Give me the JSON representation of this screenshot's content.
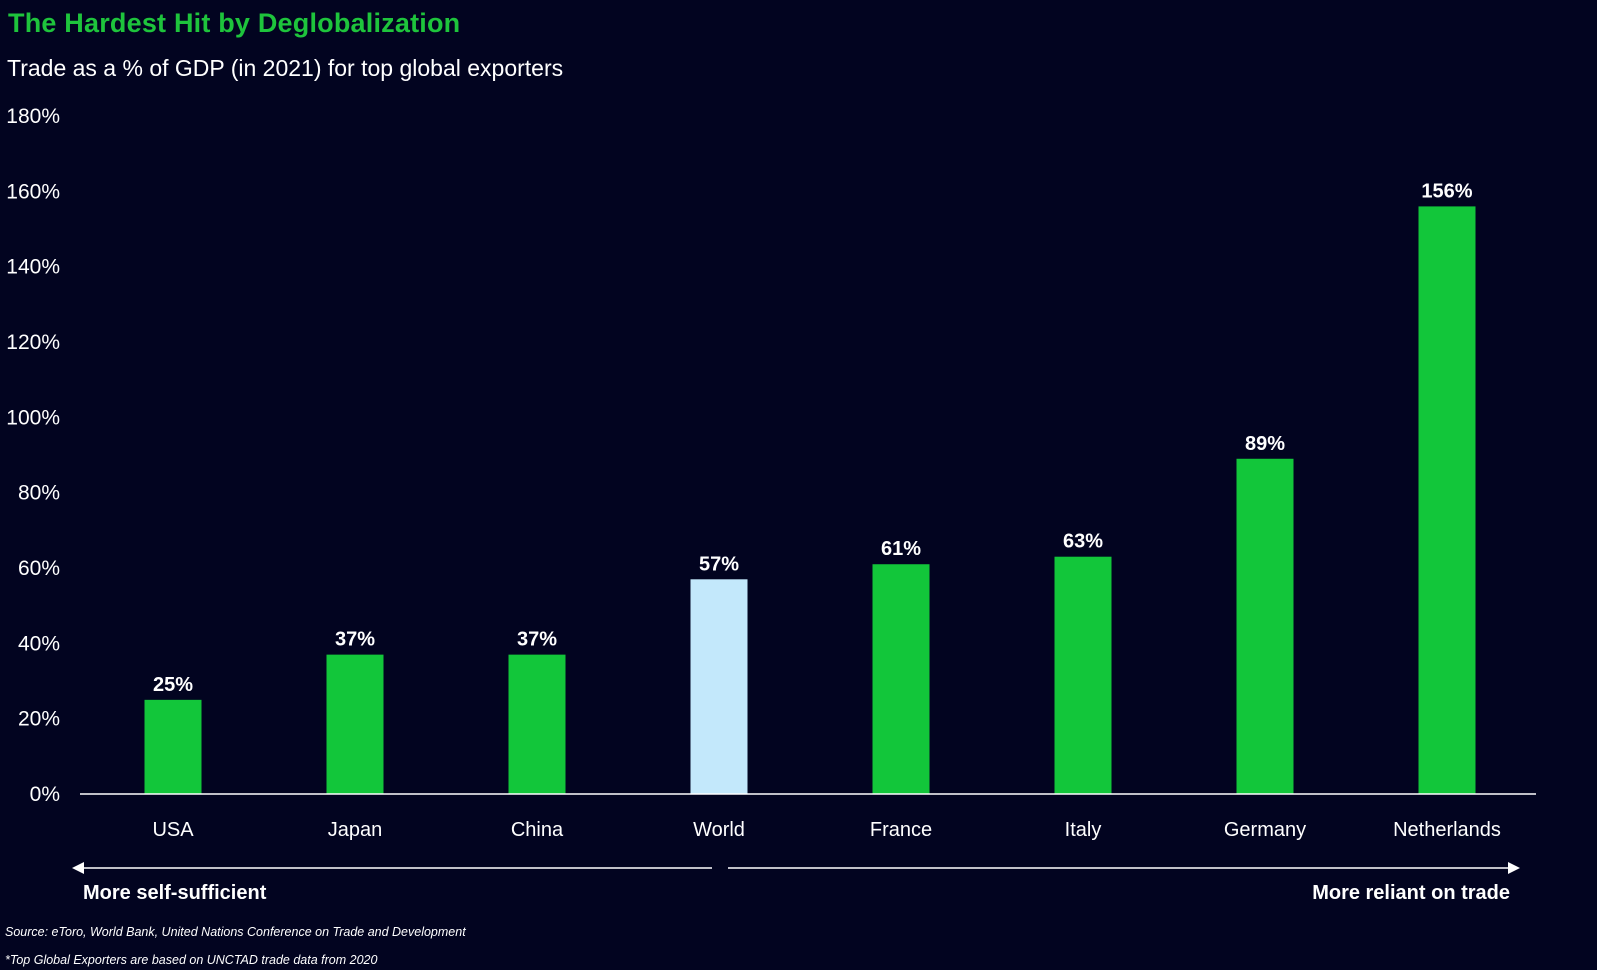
{
  "title": "The Hardest Hit by Deglobalization",
  "subtitle": "Trade as a % of GDP (in 2021) for top global exporters",
  "colors": {
    "background": "#020420",
    "bar": "#12c63a",
    "highlight": "#c3e8fb",
    "title": "#1ec43c",
    "text": "#ffffff"
  },
  "chart_data": {
    "type": "bar",
    "categories": [
      "USA",
      "Japan",
      "China",
      "World",
      "France",
      "Italy",
      "Germany",
      "Netherlands"
    ],
    "values": [
      25,
      37,
      37,
      57,
      61,
      63,
      89,
      156
    ],
    "data_labels": [
      "25%",
      "37%",
      "37%",
      "57%",
      "61%",
      "63%",
      "89%",
      "156%"
    ],
    "highlight_category": "World",
    "ylim": [
      0,
      180
    ],
    "y_ticks": [
      0,
      20,
      40,
      60,
      80,
      100,
      120,
      140,
      160,
      180
    ],
    "y_tick_labels": [
      "0%",
      "20%",
      "40%",
      "60%",
      "80%",
      "100%",
      "120%",
      "140%",
      "160%",
      "180%"
    ],
    "grid": false,
    "xlabel": "",
    "ylabel": ""
  },
  "annotations": {
    "left": "More self-sufficient",
    "right": "More reliant on trade"
  },
  "footnotes": {
    "source": "Source: eToro, World Bank, United Nations Conference on Trade and Development",
    "note": "*Top Global Exporters are based on UNCTAD trade data from 2020"
  }
}
